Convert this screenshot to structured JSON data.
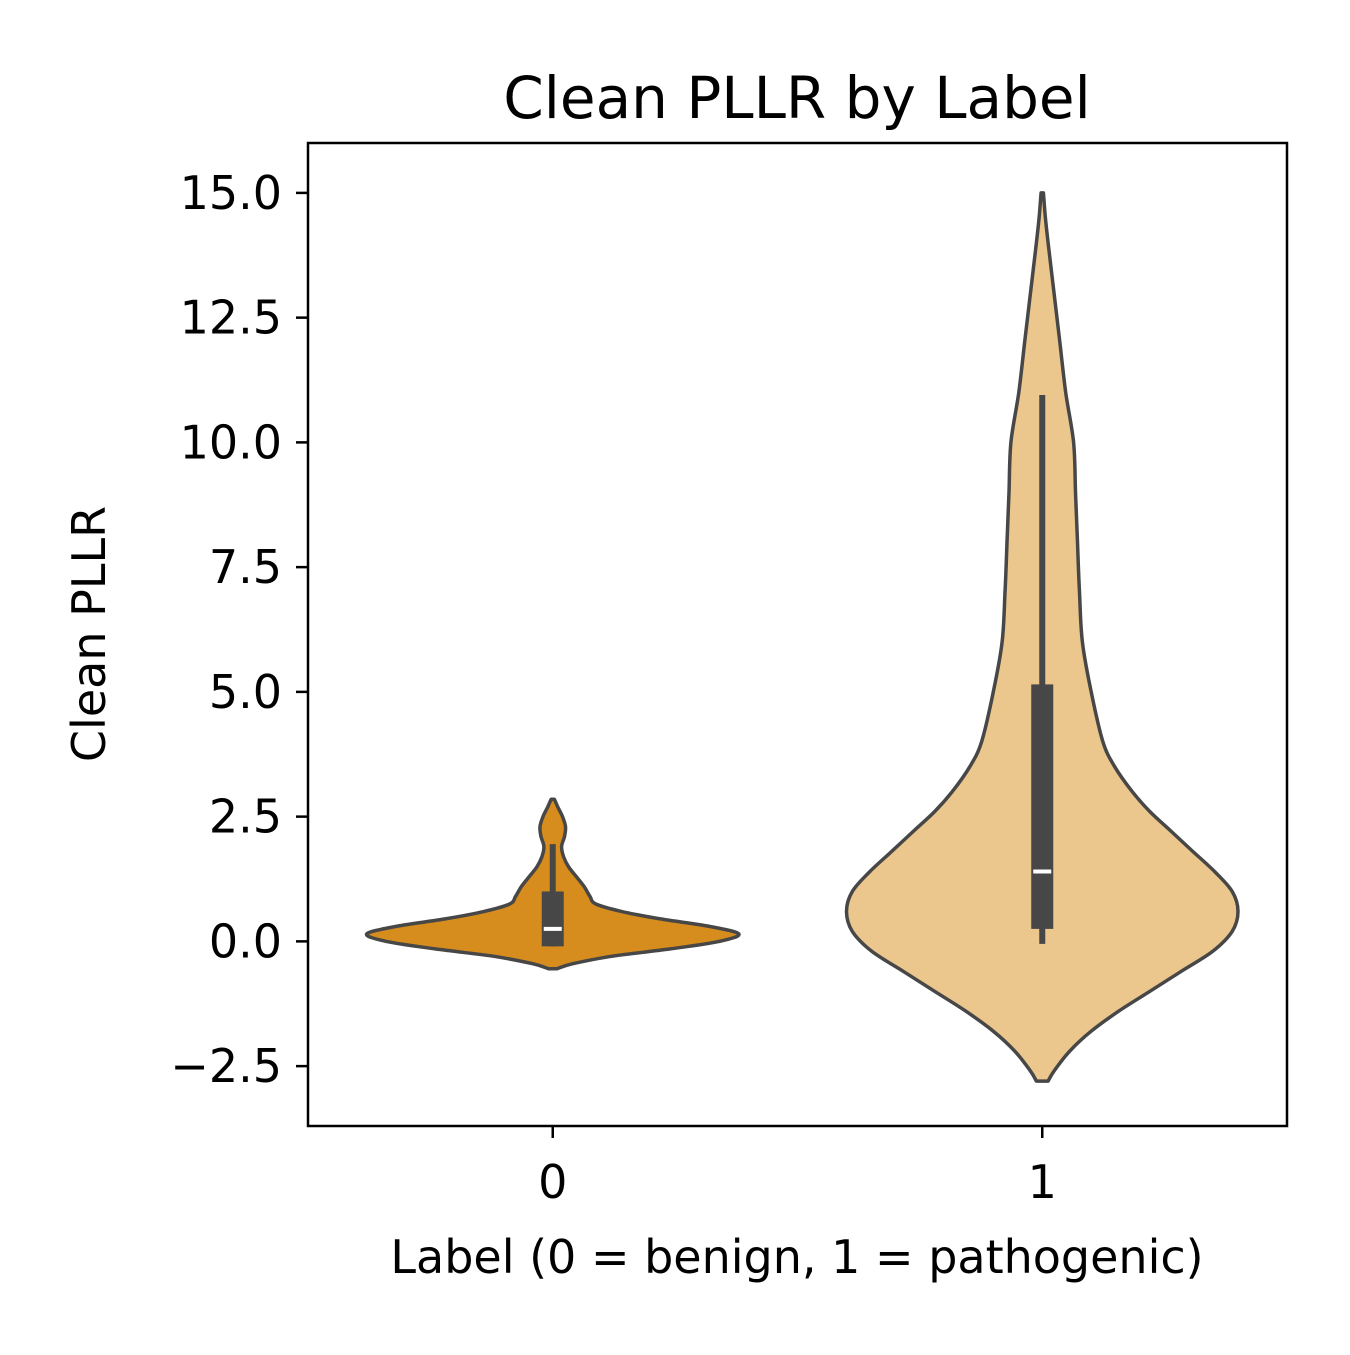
{
  "chart_data": {
    "type": "violin",
    "title": "Clean PLLR by Label",
    "xlabel": "Label (0 = benign, 1 = pathogenic)",
    "ylabel": "Clean PLLR",
    "categories": [
      "0",
      "1"
    ],
    "ylim": [
      -3.7,
      16.0
    ],
    "yticks": [
      -2.5,
      0.0,
      2.5,
      5.0,
      7.5,
      10.0,
      12.5,
      15.0
    ],
    "ytick_labels": [
      "−2.5",
      "0.0",
      "2.5",
      "5.0",
      "7.5",
      "10.0",
      "12.5",
      "15.0"
    ],
    "grid": false,
    "legend": "none",
    "violins": [
      {
        "category": "0",
        "color": "#d68d1d",
        "whisker_low": -0.1,
        "q1": -0.1,
        "median": 0.25,
        "q3": 1.0,
        "whisker_high": 1.95,
        "density_profile": [
          [
            -0.55,
            0.02
          ],
          [
            -0.45,
            0.1
          ],
          [
            -0.3,
            0.3
          ],
          [
            -0.15,
            0.6
          ],
          [
            0.0,
            0.85
          ],
          [
            0.15,
            0.95
          ],
          [
            0.3,
            0.8
          ],
          [
            0.45,
            0.55
          ],
          [
            0.6,
            0.35
          ],
          [
            0.75,
            0.22
          ],
          [
            0.9,
            0.19
          ],
          [
            1.1,
            0.16
          ],
          [
            1.3,
            0.12
          ],
          [
            1.5,
            0.08
          ],
          [
            1.7,
            0.055
          ],
          [
            1.9,
            0.045
          ],
          [
            2.1,
            0.06
          ],
          [
            2.3,
            0.065
          ],
          [
            2.5,
            0.05
          ],
          [
            2.7,
            0.025
          ],
          [
            2.85,
            0.008
          ]
        ]
      },
      {
        "category": "1",
        "color": "#ebc78d",
        "whisker_low": -0.05,
        "q1": 0.25,
        "median": 1.4,
        "q3": 5.15,
        "whisker_high": 10.95,
        "density_profile": [
          [
            -2.8,
            0.03
          ],
          [
            -2.6,
            0.06
          ],
          [
            -2.2,
            0.14
          ],
          [
            -1.8,
            0.25
          ],
          [
            -1.4,
            0.39
          ],
          [
            -1.0,
            0.55
          ],
          [
            -0.6,
            0.71
          ],
          [
            -0.2,
            0.87
          ],
          [
            0.2,
            0.97
          ],
          [
            0.6,
            1.0
          ],
          [
            1.0,
            0.97
          ],
          [
            1.4,
            0.88
          ],
          [
            1.8,
            0.77
          ],
          [
            2.2,
            0.66
          ],
          [
            2.6,
            0.55
          ],
          [
            3.0,
            0.46
          ],
          [
            3.5,
            0.37
          ],
          [
            4.0,
            0.31
          ],
          [
            5.0,
            0.25
          ],
          [
            6.0,
            0.205
          ],
          [
            7.0,
            0.19
          ],
          [
            8.0,
            0.18
          ],
          [
            9.0,
            0.17
          ],
          [
            10.0,
            0.16
          ],
          [
            11.0,
            0.12
          ],
          [
            12.0,
            0.09
          ],
          [
            13.0,
            0.06
          ],
          [
            14.0,
            0.03
          ],
          [
            14.5,
            0.016
          ],
          [
            15.0,
            0.006
          ]
        ]
      }
    ]
  }
}
